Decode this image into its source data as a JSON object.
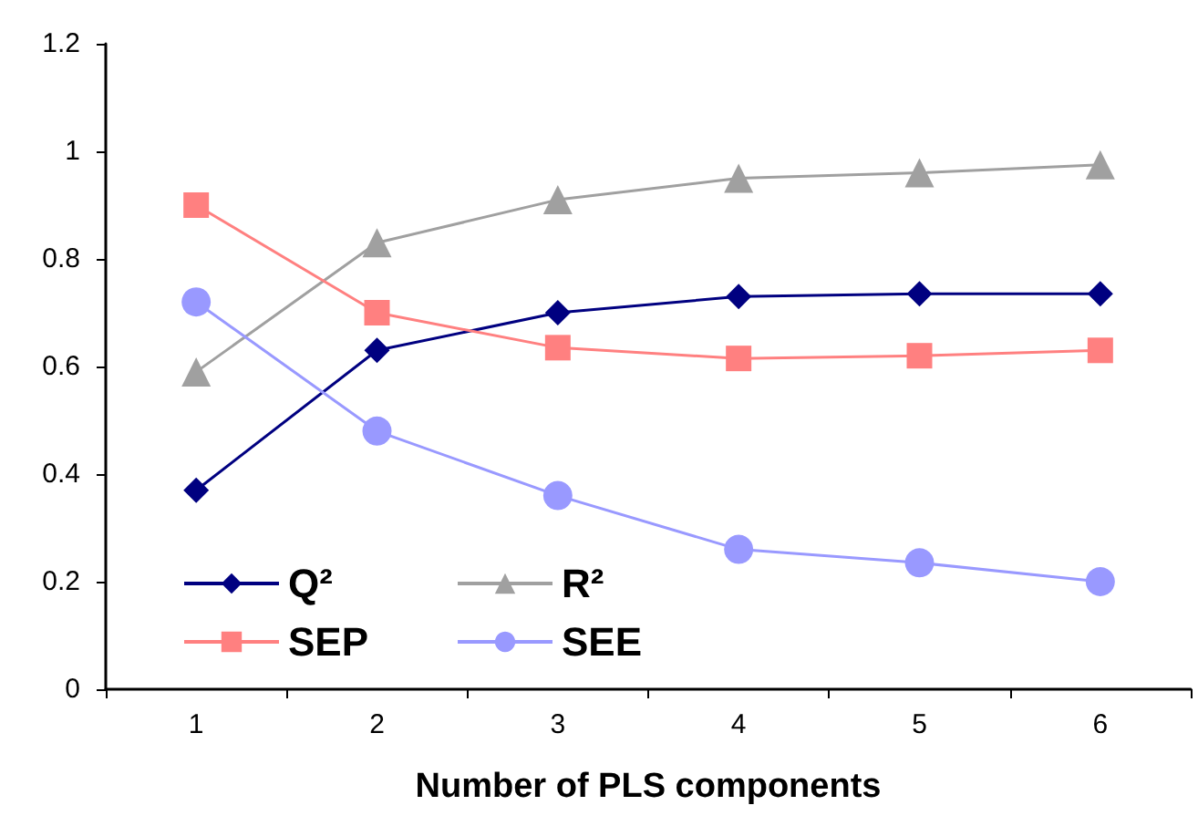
{
  "chart_data": {
    "type": "line",
    "xlabel": "Number of PLS components",
    "categories": [
      "1",
      "2",
      "3",
      "4",
      "5",
      "6"
    ],
    "series": [
      {
        "name": "Q²",
        "color": "#000080",
        "marker": "diamond",
        "values": [
          0.37,
          0.63,
          0.7,
          0.73,
          0.735,
          0.735
        ]
      },
      {
        "name": "R²",
        "color": "#a0a0a0",
        "marker": "triangle",
        "values": [
          0.59,
          0.83,
          0.91,
          0.95,
          0.96,
          0.975
        ]
      },
      {
        "name": "SEP",
        "color": "#ff8080",
        "marker": "square",
        "values": [
          0.9,
          0.7,
          0.635,
          0.615,
          0.62,
          0.63
        ]
      },
      {
        "name": "SEE",
        "color": "#9999ff",
        "marker": "circle",
        "values": [
          0.72,
          0.48,
          0.36,
          0.26,
          0.235,
          0.2
        ]
      }
    ],
    "ylim": [
      0,
      1.2
    ],
    "yticks": [
      0,
      0.2,
      0.4,
      0.6,
      0.8,
      1,
      1.2
    ],
    "grid": false,
    "legend": "bottom left",
    "line_style": "solid"
  }
}
